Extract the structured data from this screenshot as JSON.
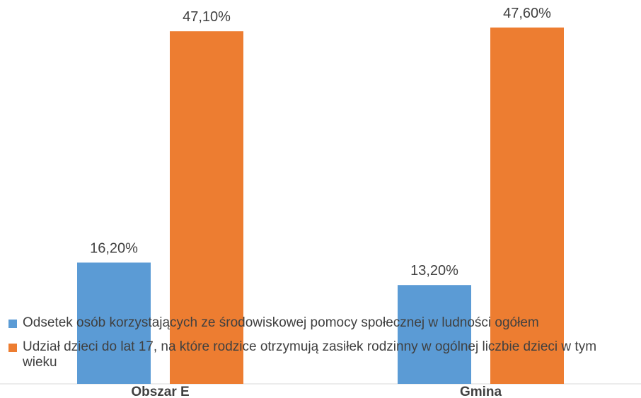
{
  "chart_data": {
    "type": "bar",
    "categories": [
      "Obszar E",
      "Gmina"
    ],
    "series": [
      {
        "name": "Odsetek osób korzystających ze środowiskowej pomocy społecznej w ludności ogółem",
        "color": "#5b9bd5",
        "values": [
          16.2,
          13.2
        ],
        "value_labels": [
          "16,20%",
          "13,20%"
        ]
      },
      {
        "name": "Udział dzieci do lat 17, na które rodzice otrzymują zasiłek rodzinny w ogólnej liczbie dzieci w tym wieku",
        "color": "#ed7d31",
        "values": [
          47.1,
          47.6
        ],
        "value_labels": [
          "47,10%",
          "47,60%"
        ]
      }
    ],
    "ylim": [
      0,
      50
    ],
    "grid": false,
    "legend": "bottom-left"
  }
}
